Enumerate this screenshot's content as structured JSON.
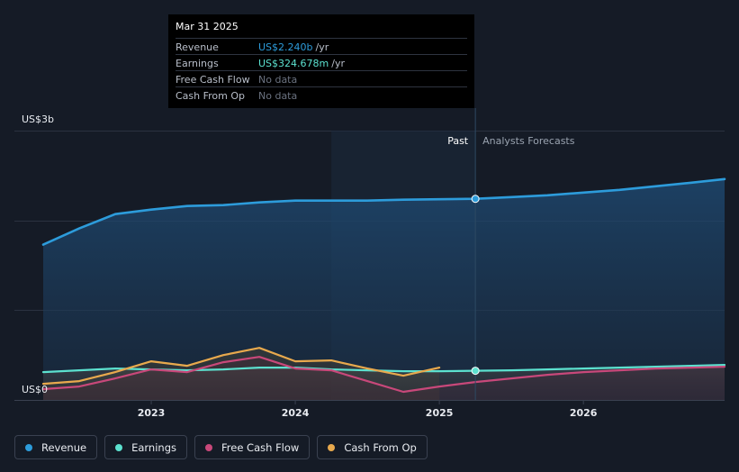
{
  "tooltip": {
    "date": "Mar 31 2025",
    "rows": [
      {
        "label": "Revenue",
        "value": "US$2.240b",
        "unit": "/yr",
        "color": "#2d9cdb"
      },
      {
        "label": "Earnings",
        "value": "US$324.678m",
        "unit": "/yr",
        "color": "#5ce1cf"
      },
      {
        "label": "Free Cash Flow",
        "value": "No data",
        "unit": "",
        "color": "#6b7280"
      },
      {
        "label": "Cash From Op",
        "value": "No data",
        "unit": "",
        "color": "#6b7280"
      }
    ]
  },
  "chart_data": {
    "type": "area",
    "title": "",
    "xlabel": "",
    "ylabel": "",
    "y_axis_labels": {
      "top": "US$3b",
      "bottom": "US$0"
    },
    "ylim": [
      0,
      3.0
    ],
    "xlim": [
      2022.25,
      2026.98
    ],
    "x_ticks": [
      {
        "value": 2023,
        "label": "2023"
      },
      {
        "value": 2024,
        "label": "2024"
      },
      {
        "value": 2025,
        "label": "2025"
      },
      {
        "value": 2026,
        "label": "2026"
      }
    ],
    "past_label": "Past",
    "forecast_label": "Analysts Forecasts",
    "divider_x": 2025.25,
    "shade_start_x": 2024.25,
    "series": [
      {
        "name": "Revenue",
        "color": "#2d9cdb",
        "x": [
          2022.25,
          2022.5,
          2022.75,
          2023.0,
          2023.25,
          2023.5,
          2023.75,
          2024.0,
          2024.25,
          2024.5,
          2024.75,
          2025.0,
          2025.25,
          2025.5,
          2025.75,
          2026.0,
          2026.25,
          2026.5,
          2026.75,
          2026.98
        ],
        "values": [
          1.73,
          1.91,
          2.07,
          2.12,
          2.16,
          2.17,
          2.2,
          2.22,
          2.22,
          2.22,
          2.23,
          2.235,
          2.24,
          2.26,
          2.28,
          2.31,
          2.34,
          2.38,
          2.42,
          2.46
        ]
      },
      {
        "name": "Earnings",
        "color": "#5ce1cf",
        "x": [
          2022.25,
          2022.5,
          2022.75,
          2023.0,
          2023.25,
          2023.5,
          2023.75,
          2024.0,
          2024.25,
          2024.5,
          2024.75,
          2025.0,
          2025.25,
          2025.5,
          2025.75,
          2026.0,
          2026.25,
          2026.5,
          2026.75,
          2026.98
        ],
        "values": [
          0.31,
          0.33,
          0.35,
          0.34,
          0.33,
          0.34,
          0.36,
          0.36,
          0.34,
          0.33,
          0.32,
          0.32,
          0.325,
          0.33,
          0.34,
          0.35,
          0.36,
          0.37,
          0.38,
          0.39
        ]
      },
      {
        "name": "Free Cash Flow",
        "color": "#c8487a",
        "x": [
          2022.25,
          2022.5,
          2022.75,
          2023.0,
          2023.25,
          2023.5,
          2023.75,
          2024.0,
          2024.25,
          2024.5,
          2024.75,
          2025.0,
          2025.25,
          2025.5,
          2025.75,
          2026.0,
          2026.25,
          2026.5,
          2026.75,
          2026.98
        ],
        "values": [
          0.12,
          0.15,
          0.24,
          0.34,
          0.31,
          0.42,
          0.48,
          0.35,
          0.33,
          0.21,
          0.09,
          0.15,
          0.2,
          0.24,
          0.28,
          0.31,
          0.33,
          0.35,
          0.36,
          0.37
        ]
      },
      {
        "name": "Cash From Op",
        "color": "#e8a94d",
        "x": [
          2022.25,
          2022.5,
          2022.75,
          2023.0,
          2023.25,
          2023.5,
          2023.75,
          2024.0,
          2024.25,
          2024.5,
          2024.75,
          2025.0
        ],
        "values": [
          0.18,
          0.21,
          0.31,
          0.43,
          0.38,
          0.5,
          0.58,
          0.43,
          0.44,
          0.35,
          0.27,
          0.36
        ]
      }
    ]
  },
  "legend": [
    {
      "label": "Revenue",
      "color": "#2d9cdb"
    },
    {
      "label": "Earnings",
      "color": "#5ce1cf"
    },
    {
      "label": "Free Cash Flow",
      "color": "#c8487a"
    },
    {
      "label": "Cash From Op",
      "color": "#e8a94d"
    }
  ]
}
